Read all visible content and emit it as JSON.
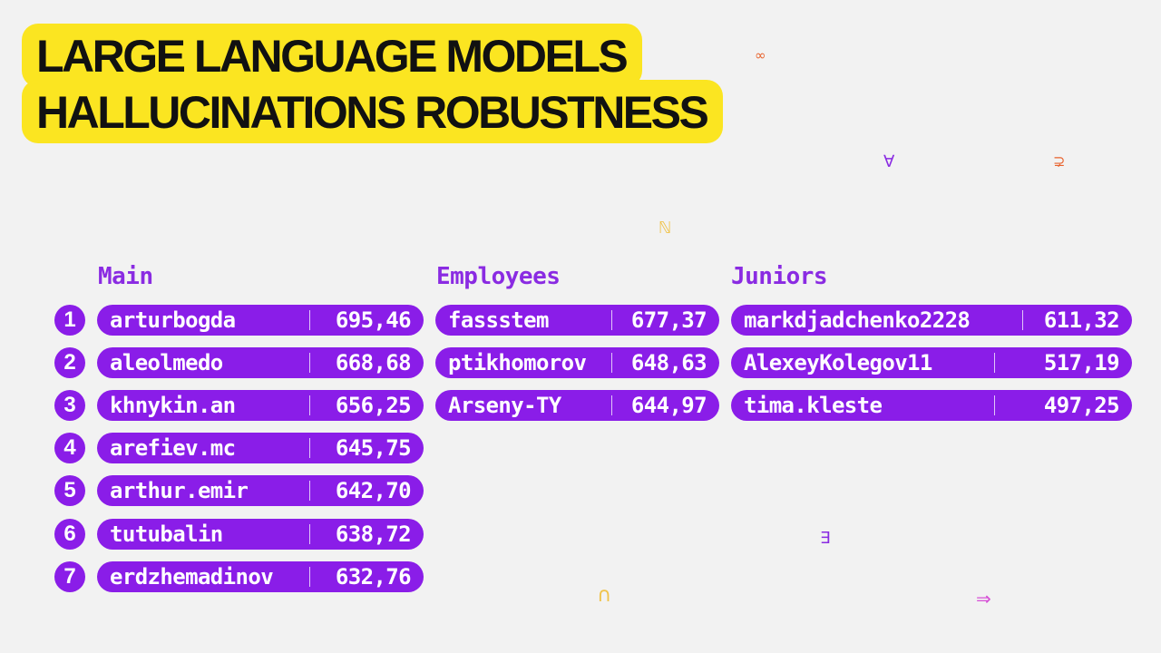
{
  "title": {
    "line1": "LARGE LANGUAGE MODELS",
    "line2": "HALLUCINATIONS ROBUSTNESS"
  },
  "colors": {
    "accent": "#8a1de8",
    "highlight": "#fbe521",
    "background": "#f2f2f2"
  },
  "glyphs": [
    "∞",
    "∀",
    "⊋",
    "ℕ",
    "∃",
    "∩",
    "⇒"
  ],
  "columns": {
    "main": {
      "header": "Main",
      "rows": [
        {
          "rank": "1",
          "name": "arturbogda",
          "score": "695,46"
        },
        {
          "rank": "2",
          "name": "aleolmedo",
          "score": "668,68"
        },
        {
          "rank": "3",
          "name": "khnykin.an",
          "score": "656,25"
        },
        {
          "rank": "4",
          "name": "arefiev.mc",
          "score": "645,75"
        },
        {
          "rank": "5",
          "name": "arthur.emir",
          "score": "642,70"
        },
        {
          "rank": "6",
          "name": "tutubalin",
          "score": "638,72"
        },
        {
          "rank": "7",
          "name": "erdzhemadinov",
          "score": "632,76"
        }
      ]
    },
    "employees": {
      "header": "Employees",
      "rows": [
        {
          "name": "fassstem",
          "score": "677,37"
        },
        {
          "name": "ptikhomorov",
          "score": "648,63"
        },
        {
          "name": "Arseny-TY",
          "score": "644,97"
        }
      ]
    },
    "juniors": {
      "header": "Juniors",
      "rows": [
        {
          "name": "markdjadchenko2228",
          "score": "611,32"
        },
        {
          "name": "AlexeyKolegov11",
          "score": "517,19"
        },
        {
          "name": "tima.kleste",
          "score": "497,25"
        }
      ]
    }
  }
}
